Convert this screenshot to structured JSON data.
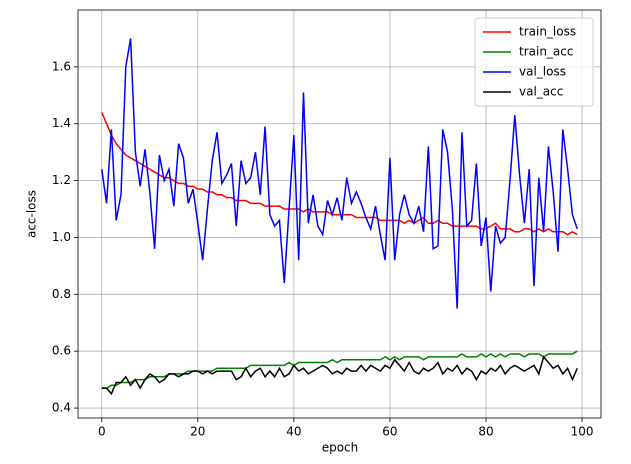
{
  "chart_data": {
    "type": "line",
    "xlabel": "epoch",
    "ylabel": "acc-loss",
    "x": [
      0,
      1,
      2,
      3,
      4,
      5,
      6,
      7,
      8,
      9,
      10,
      11,
      12,
      13,
      14,
      15,
      16,
      17,
      18,
      19,
      20,
      21,
      22,
      23,
      24,
      25,
      26,
      27,
      28,
      29,
      30,
      31,
      32,
      33,
      34,
      35,
      36,
      37,
      38,
      39,
      40,
      41,
      42,
      43,
      44,
      45,
      46,
      47,
      48,
      49,
      50,
      51,
      52,
      53,
      54,
      55,
      56,
      57,
      58,
      59,
      60,
      61,
      62,
      63,
      64,
      65,
      66,
      67,
      68,
      69,
      70,
      71,
      72,
      73,
      74,
      75,
      76,
      77,
      78,
      79,
      80,
      81,
      82,
      83,
      84,
      85,
      86,
      87,
      88,
      89,
      90,
      91,
      92,
      93,
      94,
      95,
      96,
      97,
      98,
      99
    ],
    "series": [
      {
        "name": "train_loss",
        "color": "#ff0000",
        "values": [
          1.44,
          1.4,
          1.36,
          1.33,
          1.31,
          1.29,
          1.28,
          1.27,
          1.26,
          1.25,
          1.24,
          1.23,
          1.22,
          1.21,
          1.21,
          1.2,
          1.19,
          1.19,
          1.18,
          1.18,
          1.17,
          1.17,
          1.16,
          1.16,
          1.15,
          1.15,
          1.14,
          1.14,
          1.13,
          1.13,
          1.13,
          1.12,
          1.12,
          1.12,
          1.11,
          1.11,
          1.11,
          1.11,
          1.1,
          1.1,
          1.1,
          1.1,
          1.09,
          1.1,
          1.09,
          1.09,
          1.09,
          1.09,
          1.08,
          1.08,
          1.08,
          1.08,
          1.08,
          1.07,
          1.07,
          1.07,
          1.07,
          1.07,
          1.06,
          1.06,
          1.06,
          1.06,
          1.06,
          1.05,
          1.06,
          1.05,
          1.06,
          1.07,
          1.05,
          1.05,
          1.06,
          1.05,
          1.05,
          1.04,
          1.04,
          1.04,
          1.04,
          1.04,
          1.04,
          1.03,
          1.03,
          1.04,
          1.05,
          1.03,
          1.03,
          1.03,
          1.02,
          1.02,
          1.03,
          1.03,
          1.02,
          1.03,
          1.02,
          1.03,
          1.02,
          1.02,
          1.02,
          1.01,
          1.02,
          1.01
        ]
      },
      {
        "name": "train_acc",
        "color": "#008000",
        "values": [
          0.47,
          0.47,
          0.48,
          0.48,
          0.49,
          0.49,
          0.49,
          0.5,
          0.5,
          0.5,
          0.51,
          0.51,
          0.51,
          0.51,
          0.52,
          0.52,
          0.52,
          0.52,
          0.53,
          0.53,
          0.53,
          0.53,
          0.53,
          0.53,
          0.54,
          0.54,
          0.54,
          0.54,
          0.54,
          0.54,
          0.54,
          0.55,
          0.55,
          0.55,
          0.55,
          0.55,
          0.55,
          0.55,
          0.55,
          0.56,
          0.55,
          0.56,
          0.56,
          0.56,
          0.56,
          0.56,
          0.56,
          0.56,
          0.57,
          0.56,
          0.57,
          0.57,
          0.57,
          0.57,
          0.57,
          0.57,
          0.57,
          0.57,
          0.57,
          0.58,
          0.57,
          0.58,
          0.57,
          0.58,
          0.58,
          0.58,
          0.58,
          0.57,
          0.58,
          0.58,
          0.58,
          0.58,
          0.58,
          0.58,
          0.58,
          0.59,
          0.58,
          0.58,
          0.58,
          0.59,
          0.58,
          0.59,
          0.58,
          0.59,
          0.58,
          0.59,
          0.59,
          0.59,
          0.58,
          0.59,
          0.59,
          0.59,
          0.58,
          0.59,
          0.59,
          0.59,
          0.59,
          0.59,
          0.59,
          0.6
        ]
      },
      {
        "name": "val_loss",
        "color": "#0000ff",
        "values": [
          1.24,
          1.12,
          1.38,
          1.06,
          1.15,
          1.6,
          1.7,
          1.3,
          1.18,
          1.31,
          1.16,
          0.96,
          1.29,
          1.2,
          1.24,
          1.11,
          1.33,
          1.28,
          1.12,
          1.17,
          1.05,
          0.92,
          1.1,
          1.27,
          1.37,
          1.19,
          1.22,
          1.26,
          1.04,
          1.27,
          1.19,
          1.21,
          1.3,
          1.15,
          1.39,
          1.08,
          1.04,
          1.06,
          0.84,
          1.1,
          1.36,
          0.92,
          1.51,
          1.05,
          1.15,
          1.04,
          1.01,
          1.13,
          1.08,
          1.14,
          1.06,
          1.21,
          1.12,
          1.16,
          1.12,
          1.07,
          1.03,
          1.11,
          1.01,
          0.92,
          1.28,
          0.92,
          1.08,
          1.15,
          1.08,
          1.05,
          1.11,
          1.02,
          1.32,
          0.96,
          0.97,
          1.38,
          1.3,
          1.1,
          0.75,
          1.37,
          1.04,
          1.06,
          1.26,
          0.97,
          1.07,
          0.81,
          1.04,
          0.98,
          1.0,
          1.2,
          1.43,
          1.22,
          1.05,
          1.24,
          0.83,
          1.21,
          1.02,
          1.32,
          1.16,
          0.95,
          1.38,
          1.24,
          1.08,
          1.03
        ]
      },
      {
        "name": "val_acc",
        "color": "#000000",
        "values": [
          0.47,
          0.47,
          0.45,
          0.49,
          0.49,
          0.51,
          0.48,
          0.5,
          0.47,
          0.5,
          0.52,
          0.51,
          0.49,
          0.5,
          0.52,
          0.52,
          0.51,
          0.52,
          0.52,
          0.53,
          0.53,
          0.52,
          0.53,
          0.52,
          0.53,
          0.53,
          0.53,
          0.53,
          0.5,
          0.51,
          0.54,
          0.51,
          0.53,
          0.54,
          0.51,
          0.53,
          0.51,
          0.54,
          0.51,
          0.52,
          0.55,
          0.53,
          0.54,
          0.52,
          0.53,
          0.54,
          0.55,
          0.54,
          0.52,
          0.53,
          0.52,
          0.54,
          0.53,
          0.53,
          0.55,
          0.53,
          0.55,
          0.54,
          0.53,
          0.55,
          0.54,
          0.57,
          0.55,
          0.53,
          0.56,
          0.53,
          0.52,
          0.54,
          0.53,
          0.54,
          0.56,
          0.52,
          0.54,
          0.53,
          0.55,
          0.52,
          0.54,
          0.53,
          0.5,
          0.53,
          0.52,
          0.54,
          0.53,
          0.55,
          0.52,
          0.54,
          0.55,
          0.54,
          0.53,
          0.54,
          0.55,
          0.52,
          0.58,
          0.56,
          0.54,
          0.55,
          0.52,
          0.54,
          0.5,
          0.54
        ]
      }
    ],
    "xlim": [
      -4.95,
      103.95
    ],
    "xticks": [
      0,
      20,
      40,
      60,
      80,
      100
    ],
    "ylim": [
      0.365,
      1.8
    ],
    "yticks": [
      0.4,
      0.6,
      0.8,
      {
        "value": 1.0,
        "label": "1.0"
      },
      1.2,
      1.4,
      1.6
    ],
    "grid": true,
    "legend": "upper right"
  }
}
